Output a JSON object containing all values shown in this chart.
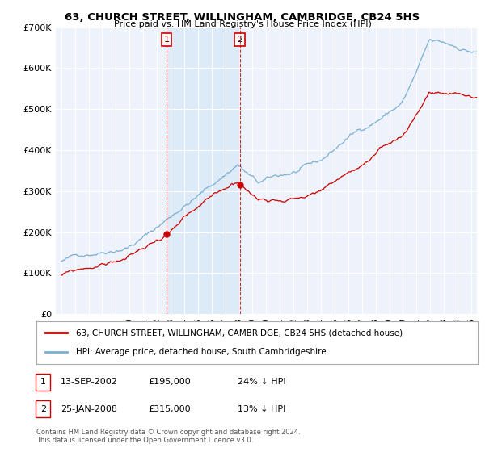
{
  "title": "63, CHURCH STREET, WILLINGHAM, CAMBRIDGE, CB24 5HS",
  "subtitle": "Price paid vs. HM Land Registry's House Price Index (HPI)",
  "legend_line1": "63, CHURCH STREET, WILLINGHAM, CAMBRIDGE, CB24 5HS (detached house)",
  "legend_line2": "HPI: Average price, detached house, South Cambridgeshire",
  "ann1": {
    "label": "1",
    "date": "13-SEP-2002",
    "price": "£195,000",
    "pct": "24% ↓ HPI",
    "x_year": 2002.71,
    "y": 195000
  },
  "ann2": {
    "label": "2",
    "date": "25-JAN-2008",
    "price": "£315,000",
    "pct": "13% ↓ HPI",
    "x_year": 2008.06,
    "y": 315000
  },
  "footer1": "Contains HM Land Registry data © Crown copyright and database right 2024.",
  "footer2": "This data is licensed under the Open Government Licence v3.0.",
  "hpi_color": "#7bafd4",
  "price_color": "#cc0000",
  "shade_color": "#ddeaf7",
  "background_color": "#ffffff",
  "plot_bg_color": "#eef2fa",
  "grid_color": "#ffffff",
  "ylim": [
    0,
    700000
  ],
  "xlim_start": 1994.6,
  "xlim_end": 2025.4
}
